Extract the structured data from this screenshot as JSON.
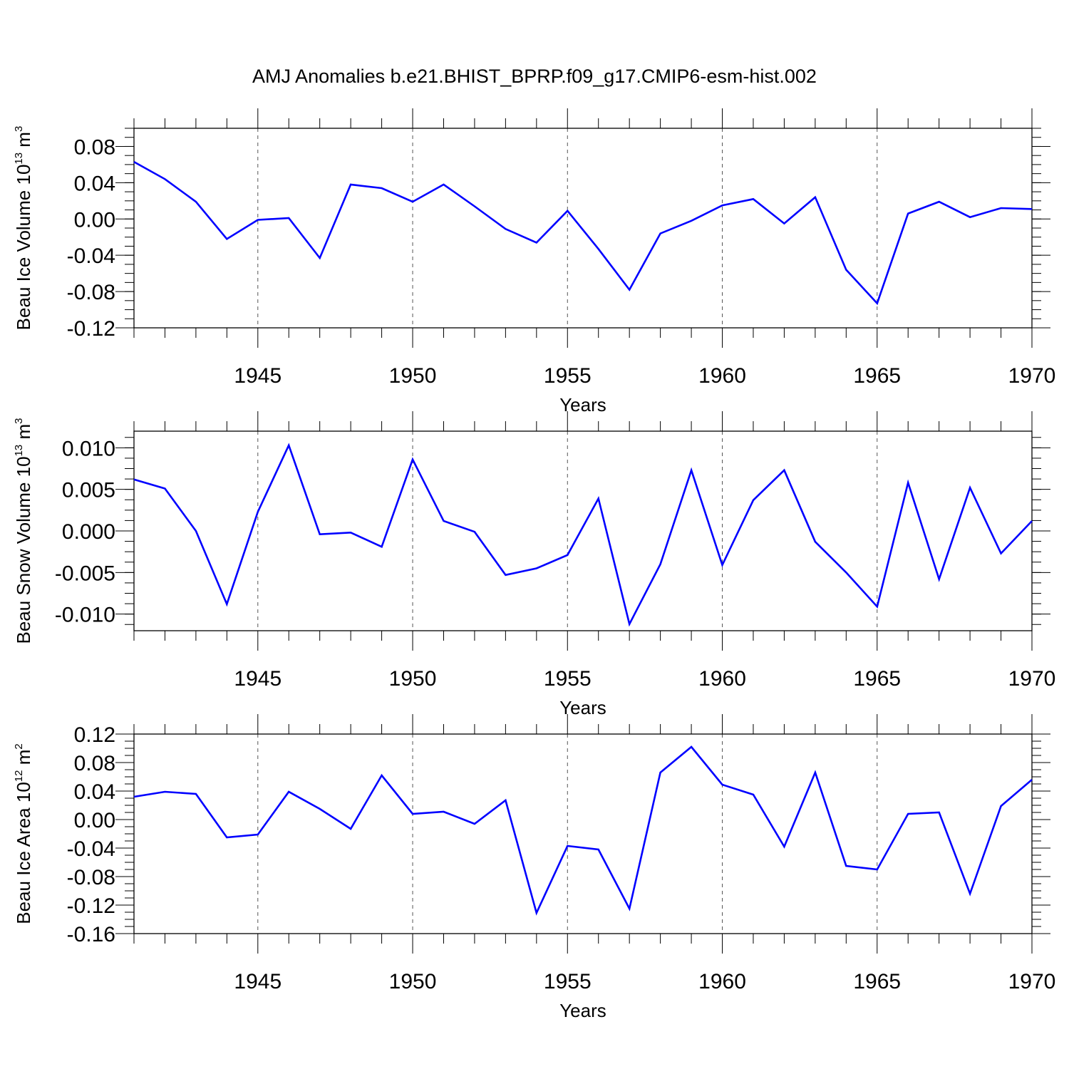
{
  "title": "AMJ Anomalies b.e21.BHIST_BPRP.f09_g17.CMIP6-esm-hist.002",
  "colors": {
    "line": "#0000ff",
    "axis": "#000000",
    "gridline": "#555555"
  },
  "chart_data": [
    {
      "type": "line",
      "ylabel": {
        "main": "Beau Ice Volume 10",
        "sup": "13",
        "unit": " m",
        "unit_sup": "3"
      },
      "xlabel": "Years",
      "xlim": [
        1941,
        1970
      ],
      "ylim": [
        -0.12,
        0.1
      ],
      "x_ticks": [
        1945,
        1950,
        1955,
        1960,
        1965,
        1970
      ],
      "y_ticks": [
        "-0.12",
        "-0.08",
        "-0.04",
        "0.00",
        "0.04",
        "0.08"
      ],
      "grid": "dashed vertical at labeled years",
      "x": [
        1941,
        1942,
        1943,
        1944,
        1945,
        1946,
        1947,
        1948,
        1949,
        1950,
        1951,
        1952,
        1953,
        1954,
        1955,
        1956,
        1957,
        1958,
        1959,
        1960,
        1961,
        1962,
        1963,
        1964,
        1965,
        1966,
        1967,
        1968,
        1969,
        1970
      ],
      "values": [
        0.063,
        0.044,
        0.019,
        -0.022,
        -0.001,
        0.001,
        -0.043,
        0.038,
        0.034,
        0.019,
        0.038,
        0.014,
        -0.011,
        -0.026,
        0.009,
        -0.033,
        -0.078,
        -0.016,
        -0.002,
        0.015,
        0.022,
        -0.005,
        0.024,
        -0.056,
        -0.093,
        0.006,
        0.019,
        0.002,
        0.012,
        0.011
      ]
    },
    {
      "type": "line",
      "ylabel": {
        "main": "Beau Snow Volume 10",
        "sup": "13",
        "unit": " m",
        "unit_sup": "3"
      },
      "xlabel": "Years",
      "xlim": [
        1941,
        1970
      ],
      "ylim": [
        -0.012,
        0.012
      ],
      "x_ticks": [
        1945,
        1950,
        1955,
        1960,
        1965,
        1970
      ],
      "y_ticks": [
        "-0.010",
        "-0.005",
        "0.000",
        "0.005",
        "0.010"
      ],
      "grid": "dashed vertical at labeled years",
      "x": [
        1941,
        1942,
        1943,
        1944,
        1945,
        1946,
        1947,
        1948,
        1949,
        1950,
        1951,
        1952,
        1953,
        1954,
        1955,
        1956,
        1957,
        1958,
        1959,
        1960,
        1961,
        1962,
        1963,
        1964,
        1965,
        1966,
        1967,
        1968,
        1969,
        1970
      ],
      "values": [
        0.0062,
        0.0051,
        0.0,
        -0.0088,
        0.0023,
        0.0103,
        -0.0004,
        -0.0002,
        -0.0019,
        0.0086,
        0.0012,
        -0.0001,
        -0.0053,
        -0.0045,
        -0.0029,
        0.0039,
        -0.0112,
        -0.004,
        0.0073,
        -0.0041,
        0.0037,
        0.0073,
        -0.0013,
        -0.005,
        -0.0091,
        0.0058,
        -0.0058,
        0.0052,
        -0.0027,
        0.0012
      ]
    },
    {
      "type": "line",
      "ylabel": {
        "main": "Beau Ice Area 10",
        "sup": "12",
        "unit": " m",
        "unit_sup": "2"
      },
      "xlabel": "Years",
      "xlim": [
        1941,
        1970
      ],
      "ylim": [
        -0.16,
        0.12
      ],
      "x_ticks": [
        1945,
        1950,
        1955,
        1960,
        1965,
        1970
      ],
      "y_ticks": [
        "-0.16",
        "-0.12",
        "-0.08",
        "-0.04",
        "0.00",
        "0.04",
        "0.08",
        "0.12"
      ],
      "grid": "dashed vertical at labeled years",
      "x": [
        1941,
        1942,
        1943,
        1944,
        1945,
        1946,
        1947,
        1948,
        1949,
        1950,
        1951,
        1952,
        1953,
        1954,
        1955,
        1956,
        1957,
        1958,
        1959,
        1960,
        1961,
        1962,
        1963,
        1964,
        1965,
        1966,
        1967,
        1968,
        1969,
        1970
      ],
      "values": [
        0.032,
        0.039,
        0.036,
        -0.025,
        -0.021,
        0.039,
        0.015,
        -0.013,
        0.062,
        0.008,
        0.011,
        -0.006,
        0.027,
        -0.131,
        -0.037,
        -0.042,
        -0.125,
        0.066,
        0.102,
        0.049,
        0.035,
        -0.038,
        0.066,
        -0.065,
        -0.07,
        0.008,
        0.01,
        -0.104,
        0.019,
        0.056
      ]
    }
  ]
}
